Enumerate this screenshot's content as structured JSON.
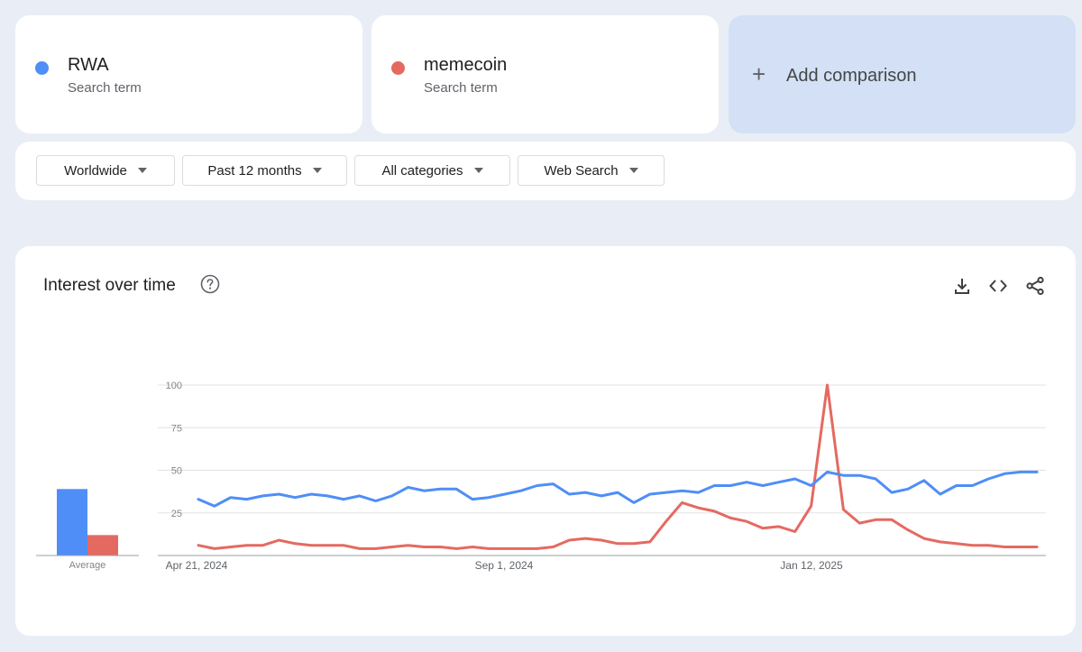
{
  "terms": [
    {
      "name": "RWA",
      "sub": "Search term",
      "color": "#4f8ef7"
    },
    {
      "name": "memecoin",
      "sub": "Search term",
      "color": "#e46a61"
    }
  ],
  "add_comparison": {
    "plus": "+",
    "label": "Add comparison"
  },
  "filters": [
    "Worldwide",
    "Past 12 months",
    "All categories",
    "Web Search"
  ],
  "chart_section": {
    "title": "Interest over time",
    "help_icon": "help-circle-icon",
    "tools": [
      "download-icon",
      "embed-code-icon",
      "share-icon"
    ]
  },
  "chart_data": {
    "type": "line",
    "ylim": [
      0,
      100
    ],
    "yticks": [
      "100",
      "75",
      "50",
      "25"
    ],
    "x_tick_labels": [
      "Apr 21, 2024",
      "Sep 1, 2024",
      "Jan 12, 2025"
    ],
    "grid": true,
    "series": [
      {
        "name": "RWA",
        "color": "#4f8ef7",
        "values": [
          33,
          29,
          34,
          33,
          35,
          36,
          34,
          36,
          35,
          33,
          35,
          32,
          35,
          40,
          38,
          39,
          39,
          33,
          34,
          36,
          38,
          41,
          42,
          36,
          37,
          35,
          37,
          31,
          36,
          37,
          38,
          37,
          41,
          41,
          43,
          41,
          43,
          45,
          41,
          49,
          47,
          47,
          45,
          37,
          39,
          44,
          36,
          41,
          41,
          45,
          48,
          49,
          49
        ]
      },
      {
        "name": "memecoin",
        "color": "#e46a61",
        "values": [
          6,
          4,
          5,
          6,
          6,
          9,
          7,
          6,
          6,
          6,
          4,
          4,
          5,
          6,
          5,
          5,
          4,
          5,
          4,
          4,
          4,
          4,
          5,
          9,
          10,
          9,
          7,
          7,
          8,
          20,
          31,
          28,
          26,
          22,
          20,
          16,
          17,
          14,
          29,
          100,
          27,
          19,
          21,
          21,
          15,
          10,
          8,
          7,
          6,
          6,
          5,
          5,
          5
        ]
      }
    ],
    "average": {
      "label": "Average",
      "values": [
        39,
        12
      ]
    }
  }
}
